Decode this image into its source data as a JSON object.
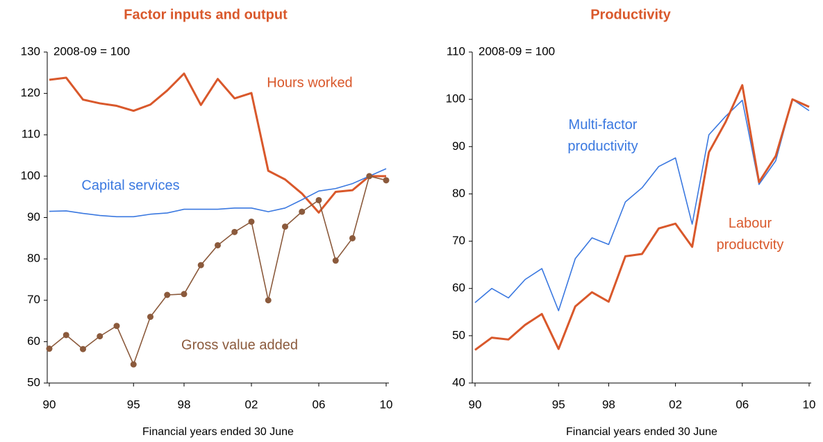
{
  "chart_data": [
    {
      "type": "line",
      "title": "Factor inputs and output",
      "annotation": "2008-09 = 100",
      "x_label": "Financial years ended 30 June",
      "x": [
        1990,
        1991,
        1992,
        1993,
        1994,
        1995,
        1996,
        1997,
        1998,
        1999,
        2000,
        2001,
        2002,
        2003,
        2004,
        2005,
        2006,
        2007,
        2008,
        2009,
        2010
      ],
      "xlim": [
        1990,
        2010
      ],
      "xticks": [
        {
          "value": 1990,
          "label": "90"
        },
        {
          "value": 1995,
          "label": "95"
        },
        {
          "value": 1998,
          "label": "98"
        },
        {
          "value": 2002,
          "label": "02"
        },
        {
          "value": 2006,
          "label": "06"
        },
        {
          "value": 2010,
          "label": "10"
        }
      ],
      "ylim": [
        50,
        130
      ],
      "yticks": [
        50,
        60,
        70,
        80,
        90,
        100,
        110,
        120,
        130
      ],
      "series": [
        {
          "name": "Hours worked",
          "color": "#d9582b",
          "values": [
            123.3,
            123.8,
            118.5,
            117.6,
            117.0,
            115.8,
            117.3,
            120.7,
            124.8,
            117.2,
            123.5,
            118.8,
            120.1,
            101.3,
            99.2,
            95.8,
            91.2,
            96.2,
            96.6,
            100,
            100
          ]
        },
        {
          "name": "Capital services",
          "color": "#3a78e0",
          "values": [
            91.5,
            91.6,
            91.0,
            90.5,
            90.2,
            90.2,
            90.8,
            91.1,
            92.0,
            92.0,
            92.0,
            92.3,
            92.3,
            91.4,
            92.3,
            94.3,
            96.4,
            97.0,
            98.2,
            100,
            101.8
          ]
        },
        {
          "name": "Gross value added",
          "color": "#8b5a3c",
          "markers": true,
          "values": [
            58.3,
            61.6,
            58.2,
            61.3,
            63.8,
            54.5,
            66.0,
            71.3,
            71.5,
            78.5,
            83.3,
            86.5,
            89.0,
            70.0,
            87.8,
            91.4,
            94.2,
            79.6,
            85.0,
            100,
            99.0
          ]
        }
      ]
    },
    {
      "type": "line",
      "title": "Productivity",
      "annotation": "2008-09 = 100",
      "x_label": "Financial years ended 30 June",
      "x": [
        1990,
        1991,
        1992,
        1993,
        1994,
        1995,
        1996,
        1997,
        1998,
        1999,
        2000,
        2001,
        2002,
        2003,
        2004,
        2005,
        2006,
        2007,
        2008,
        2009,
        2010
      ],
      "xlim": [
        1990,
        2010
      ],
      "xticks": [
        {
          "value": 1990,
          "label": "90"
        },
        {
          "value": 1995,
          "label": "95"
        },
        {
          "value": 1998,
          "label": "98"
        },
        {
          "value": 2002,
          "label": "02"
        },
        {
          "value": 2006,
          "label": "06"
        },
        {
          "value": 2010,
          "label": "10"
        }
      ],
      "ylim": [
        40,
        110
      ],
      "yticks": [
        40,
        50,
        60,
        70,
        80,
        90,
        100,
        110
      ],
      "series": [
        {
          "name": "Multi-factor productivity",
          "color": "#3a78e0",
          "values": [
            57.0,
            60.0,
            58.0,
            61.9,
            64.2,
            55.3,
            66.3,
            70.7,
            69.3,
            78.3,
            81.3,
            85.8,
            87.6,
            73.6,
            92.5,
            96.4,
            99.8,
            82.0,
            87.0,
            100,
            97.6
          ]
        },
        {
          "name": "Labour productvity",
          "color": "#d9582b",
          "values": [
            47.0,
            49.6,
            49.2,
            52.3,
            54.6,
            47.2,
            56.2,
            59.2,
            57.2,
            66.8,
            67.3,
            72.7,
            73.7,
            68.8,
            88.8,
            95.2,
            103.0,
            82.5,
            88.0,
            100,
            98.4
          ]
        }
      ]
    }
  ]
}
